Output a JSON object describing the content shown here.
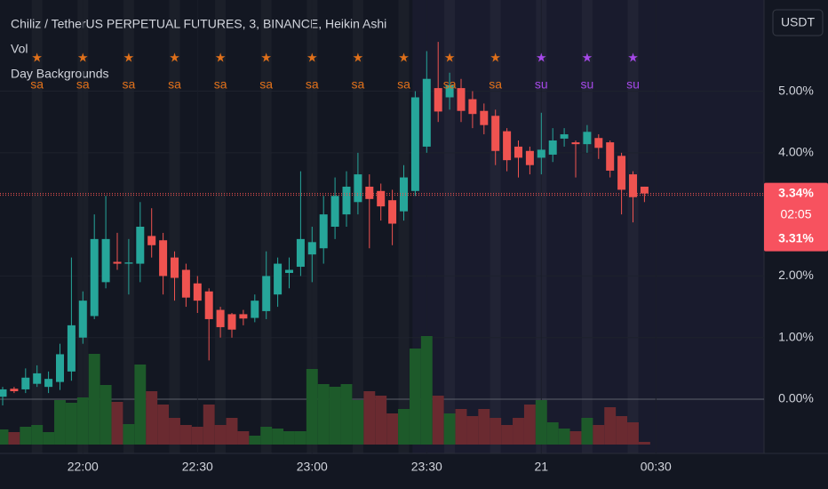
{
  "chart_data": {
    "type": "candlestick",
    "title": "Chiliz / TetherUS PERPETUAL FUTURES, 3, BINANCE, Heikin Ashi",
    "indicators": [
      "Vol",
      "Day Backgrounds"
    ],
    "currency_button": "USDT",
    "x": [
      "21:39",
      "21:42",
      "21:45",
      "21:48",
      "21:51",
      "21:54",
      "21:57",
      "22:00",
      "22:03",
      "22:06",
      "22:09",
      "22:12",
      "22:15",
      "22:18",
      "22:21",
      "22:24",
      "22:27",
      "22:30",
      "22:33",
      "22:36",
      "22:39",
      "22:42",
      "22:45",
      "22:48",
      "22:51",
      "22:54",
      "22:57",
      "23:00",
      "23:03",
      "23:06",
      "23:09",
      "23:12",
      "23:15",
      "23:18",
      "23:21",
      "23:24",
      "23:27",
      "23:30",
      "23:33",
      "23:36",
      "23:39",
      "23:42",
      "23:45",
      "23:48",
      "23:51",
      "23:54",
      "23:57",
      "00:00",
      "00:03",
      "00:06",
      "00:09",
      "00:12",
      "00:15",
      "00:18",
      "00:21",
      "00:24",
      "00:27"
    ],
    "open": [
      0.04,
      0.17,
      0.16,
      0.25,
      0.2,
      0.28,
      0.45,
      1.0,
      1.35,
      1.9,
      2.23,
      2.2,
      2.2,
      2.65,
      2.58,
      2.3,
      2.1,
      1.88,
      1.75,
      1.45,
      1.38,
      1.38,
      1.32,
      1.43,
      1.7,
      2.05,
      2.15,
      2.35,
      2.45,
      2.8,
      3.0,
      3.2,
      3.45,
      3.38,
      3.23,
      3.05,
      3.38,
      4.1,
      5.05,
      4.9,
      5.05,
      4.87,
      4.68,
      4.6,
      4.35,
      4.1,
      4.03,
      3.92,
      3.97,
      4.23,
      4.17,
      4.14,
      4.24,
      4.17,
      3.95,
      3.65,
      3.45
    ],
    "high": [
      0.2,
      0.2,
      0.5,
      0.55,
      0.45,
      0.9,
      2.3,
      1.75,
      3.0,
      3.3,
      2.7,
      2.6,
      3.2,
      3.1,
      2.7,
      2.4,
      2.2,
      2.0,
      1.8,
      1.5,
      1.4,
      1.45,
      1.7,
      2.4,
      2.3,
      2.3,
      3.7,
      2.8,
      3.3,
      3.6,
      3.7,
      4.0,
      3.65,
      3.5,
      3.4,
      3.8,
      5.0,
      5.65,
      5.8,
      5.3,
      5.2,
      5.0,
      4.8,
      4.7,
      4.4,
      4.2,
      4.1,
      4.65,
      4.4,
      4.4,
      4.2,
      4.45,
      4.3,
      4.2,
      4.0,
      3.7,
      3.45
    ],
    "low": [
      -0.1,
      0.1,
      0.1,
      0.2,
      0.1,
      0.15,
      0.3,
      0.9,
      1.3,
      1.8,
      2.1,
      1.7,
      1.9,
      2.3,
      1.7,
      1.6,
      1.5,
      1.4,
      0.63,
      1.0,
      1.0,
      1.2,
      1.25,
      1.3,
      1.5,
      1.8,
      2.0,
      1.9,
      2.2,
      2.6,
      2.8,
      3.0,
      2.45,
      2.9,
      2.5,
      2.9,
      3.3,
      4.0,
      4.5,
      4.7,
      4.5,
      4.4,
      4.3,
      3.8,
      3.7,
      3.6,
      3.65,
      3.65,
      3.85,
      4.1,
      3.6,
      4.0,
      3.9,
      3.6,
      3.0,
      2.87,
      3.2
    ],
    "close": [
      0.16,
      0.13,
      0.35,
      0.42,
      0.33,
      0.73,
      1.2,
      1.6,
      2.6,
      2.6,
      2.2,
      2.22,
      2.8,
      2.5,
      2.0,
      1.97,
      1.65,
      1.6,
      1.3,
      1.17,
      1.13,
      1.31,
      1.6,
      2.0,
      2.2,
      2.1,
      2.6,
      2.55,
      3.0,
      3.3,
      3.45,
      3.65,
      3.25,
      3.13,
      2.85,
      3.6,
      4.9,
      5.2,
      4.67,
      5.1,
      4.68,
      4.63,
      4.45,
      4.03,
      3.88,
      3.92,
      3.8,
      4.05,
      4.2,
      4.3,
      4.14,
      4.34,
      4.08,
      3.71,
      3.4,
      3.28,
      3.34
    ],
    "volume": [
      17,
      14,
      20,
      22,
      14,
      50,
      47,
      53,
      102,
      67,
      48,
      23,
      90,
      60,
      45,
      30,
      22,
      20,
      45,
      22,
      30,
      15,
      10,
      20,
      18,
      15,
      15,
      85,
      68,
      65,
      68,
      50,
      60,
      55,
      35,
      40,
      108,
      122,
      55,
      35,
      40,
      32,
      40,
      30,
      22,
      30,
      45,
      50,
      25,
      18,
      15,
      30,
      22,
      42,
      32,
      25,
      3
    ],
    "up_color": "#26a69a",
    "down_color": "#ef5350",
    "volume_up_color": "#1d5a2a",
    "volume_down_color": "#6a2a30",
    "ylim": [
      -0.88,
      6.48
    ],
    "yticks": [
      {
        "value": 0,
        "label": "0.00%"
      },
      {
        "value": 1,
        "label": "1.00%"
      },
      {
        "value": 2,
        "label": "2.00%"
      },
      {
        "value": 4,
        "label": "4.00%"
      },
      {
        "value": 5,
        "label": "5.00%"
      }
    ],
    "xticks": [
      "22:00",
      "22:30",
      "23:00",
      "23:30",
      {
        "value": "00:00",
        "label": "21"
      },
      "00:30"
    ],
    "day_markers": {
      "symbol": "★",
      "x": [
        "21:48",
        "22:00",
        "22:12",
        "22:24",
        "22:36",
        "22:48",
        "23:00",
        "23:12",
        "23:24",
        "23:36",
        "23:48",
        "00:00",
        "00:12",
        "00:24"
      ],
      "labels": [
        "sa",
        "sa",
        "sa",
        "sa",
        "sa",
        "sa",
        "sa",
        "sa",
        "sa",
        "sa",
        "sa",
        "su",
        "su",
        "su"
      ],
      "colors": {
        "sa": "#e0701a",
        "su": "#a548e8"
      }
    },
    "price_labels": [
      {
        "value": 3.34,
        "label": "3.34%"
      },
      {
        "value": 3.31,
        "label": "3.31%"
      }
    ],
    "countdown": "02:05"
  }
}
